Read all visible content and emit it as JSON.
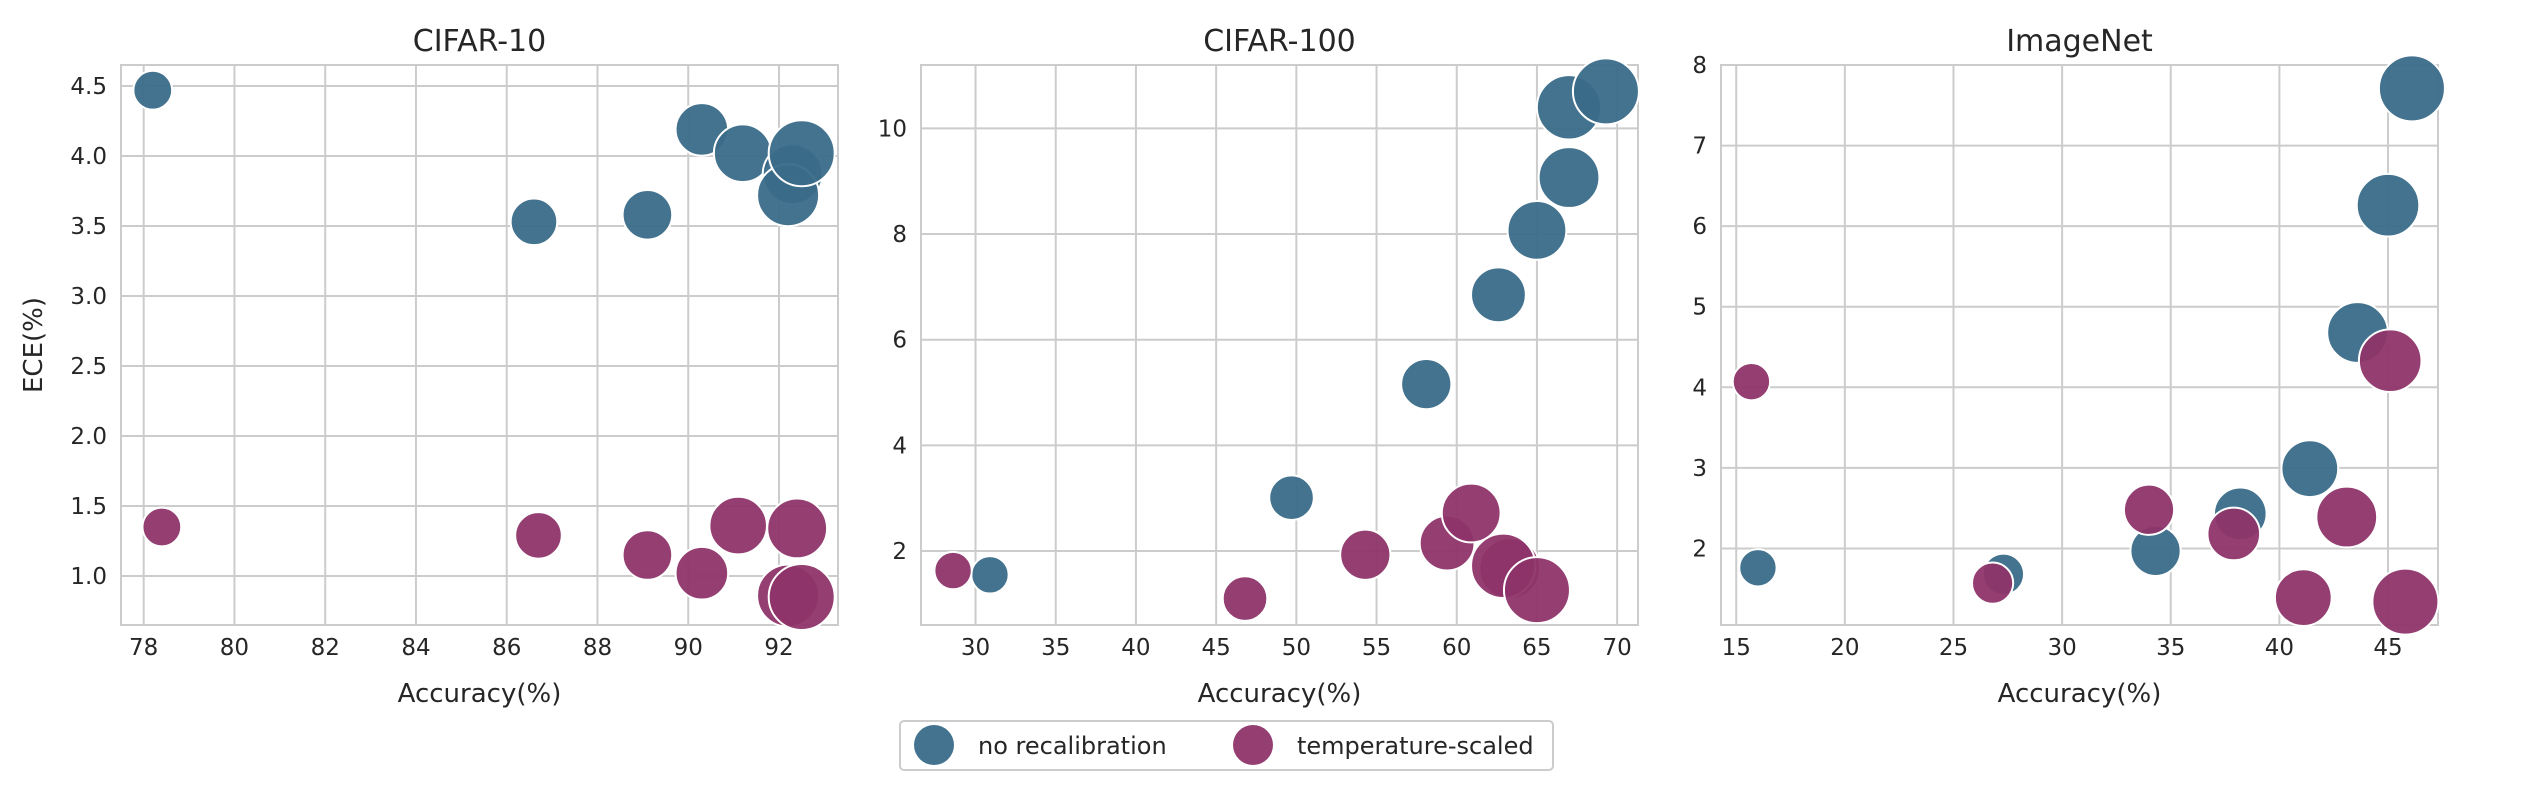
{
  "colors": {
    "no_recalibration": "#3a6b89",
    "temperature_scaled": "#8e3469",
    "grid": "#cccccc",
    "frame": "#cccccc",
    "text": "#262626",
    "background": "#ffffff"
  },
  "legend": {
    "placement": "bottom-center",
    "items": [
      {
        "label": "no recalibration",
        "series": "no_recalibration"
      },
      {
        "label": "temperature-scaled",
        "series": "temperature_scaled"
      }
    ]
  },
  "chart_data": [
    {
      "type": "scatter",
      "title": "CIFAR-10",
      "xlabel": "Accuracy(%)",
      "ylabel": "ECE(%)",
      "xlim": [
        77.5,
        93.3
      ],
      "ylim": [
        0.65,
        4.65
      ],
      "xticks": [
        78,
        80,
        82,
        84,
        86,
        88,
        90,
        92
      ],
      "yticks": [
        1.0,
        1.5,
        2.0,
        2.5,
        3.0,
        3.5,
        4.0,
        4.5
      ],
      "ytick_labels": [
        "1.0",
        "1.5",
        "2.0",
        "2.5",
        "3.0",
        "3.5",
        "4.0",
        "4.5"
      ],
      "grid": true,
      "series": [
        {
          "key": "no_recalibration",
          "name": "no recalibration",
          "points": [
            {
              "x": 78.2,
              "y": 4.47,
              "size": 1
            },
            {
              "x": 86.6,
              "y": 3.53,
              "size": 2
            },
            {
              "x": 89.1,
              "y": 3.58,
              "size": 2.5
            },
            {
              "x": 90.3,
              "y": 4.19,
              "size": 3
            },
            {
              "x": 91.2,
              "y": 4.02,
              "size": 4
            },
            {
              "x": 92.3,
              "y": 3.87,
              "size": 4.5
            },
            {
              "x": 92.2,
              "y": 3.72,
              "size": 5
            },
            {
              "x": 92.5,
              "y": 4.02,
              "size": 6
            }
          ]
        },
        {
          "key": "temperature_scaled",
          "name": "temperature-scaled",
          "points": [
            {
              "x": 78.4,
              "y": 1.35,
              "size": 1
            },
            {
              "x": 86.7,
              "y": 1.29,
              "size": 2
            },
            {
              "x": 89.1,
              "y": 1.15,
              "size": 2.5
            },
            {
              "x": 90.3,
              "y": 1.02,
              "size": 3
            },
            {
              "x": 91.1,
              "y": 1.36,
              "size": 4
            },
            {
              "x": 92.4,
              "y": 1.34,
              "size": 4.5
            },
            {
              "x": 92.2,
              "y": 0.86,
              "size": 5
            },
            {
              "x": 92.5,
              "y": 0.85,
              "size": 6
            }
          ]
        }
      ]
    },
    {
      "type": "scatter",
      "title": "CIFAR-100",
      "xlabel": "Accuracy(%)",
      "ylabel": "",
      "xlim": [
        26.6,
        71.3
      ],
      "ylim": [
        0.6,
        11.2
      ],
      "xticks": [
        30,
        35,
        40,
        45,
        50,
        55,
        60,
        65,
        70
      ],
      "yticks": [
        2,
        4,
        6,
        8,
        10
      ],
      "ytick_labels": [
        "2",
        "4",
        "6",
        "8",
        "10"
      ],
      "grid": true,
      "series": [
        {
          "key": "no_recalibration",
          "name": "no recalibration",
          "points": [
            {
              "x": 30.9,
              "y": 1.55,
              "size": 1
            },
            {
              "x": 49.7,
              "y": 3.01,
              "size": 2
            },
            {
              "x": 58.1,
              "y": 5.16,
              "size": 3
            },
            {
              "x": 62.6,
              "y": 6.85,
              "size": 4
            },
            {
              "x": 65.0,
              "y": 8.07,
              "size": 5
            },
            {
              "x": 67.0,
              "y": 9.07,
              "size": 5.5
            },
            {
              "x": 67.0,
              "y": 10.4,
              "size": 6.5
            },
            {
              "x": 69.3,
              "y": 10.7,
              "size": 7
            }
          ]
        },
        {
          "key": "temperature_scaled",
          "name": "temperature-scaled",
          "points": [
            {
              "x": 28.6,
              "y": 1.63,
              "size": 1
            },
            {
              "x": 46.8,
              "y": 1.1,
              "size": 2
            },
            {
              "x": 54.3,
              "y": 1.93,
              "size": 3
            },
            {
              "x": 59.4,
              "y": 2.15,
              "size": 4
            },
            {
              "x": 60.9,
              "y": 2.72,
              "size": 5
            },
            {
              "x": 63.3,
              "y": 1.67,
              "size": 5.5
            },
            {
              "x": 62.9,
              "y": 1.72,
              "size": 6.5
            },
            {
              "x": 65.0,
              "y": 1.26,
              "size": 7
            }
          ]
        }
      ]
    },
    {
      "type": "scatter",
      "title": "ImageNet",
      "xlabel": "Accuracy(%)",
      "ylabel": "",
      "xlim": [
        14.3,
        47.3
      ],
      "ylim": [
        1.05,
        8.0
      ],
      "xticks": [
        15,
        20,
        25,
        30,
        35,
        40,
        45
      ],
      "yticks": [
        2,
        3,
        4,
        5,
        6,
        7,
        8
      ],
      "ytick_labels": [
        "2",
        "3",
        "4",
        "5",
        "6",
        "7",
        "8"
      ],
      "grid": true,
      "series": [
        {
          "key": "no_recalibration",
          "name": "no recalibration",
          "points": [
            {
              "x": 16.0,
              "y": 1.76,
              "size": 1
            },
            {
              "x": 27.3,
              "y": 1.68,
              "size": 1.5
            },
            {
              "x": 34.3,
              "y": 1.97,
              "size": 3
            },
            {
              "x": 38.2,
              "y": 2.43,
              "size": 3.5
            },
            {
              "x": 41.4,
              "y": 2.99,
              "size": 4.5
            },
            {
              "x": 43.6,
              "y": 4.68,
              "size": 5.5
            },
            {
              "x": 45.0,
              "y": 6.26,
              "size": 6
            },
            {
              "x": 46.1,
              "y": 7.71,
              "size": 7
            }
          ]
        },
        {
          "key": "temperature_scaled",
          "name": "temperature-scaled",
          "points": [
            {
              "x": 15.7,
              "y": 4.07,
              "size": 1
            },
            {
              "x": 26.8,
              "y": 1.57,
              "size": 1.5
            },
            {
              "x": 34.0,
              "y": 2.48,
              "size": 3
            },
            {
              "x": 37.9,
              "y": 2.18,
              "size": 3.5
            },
            {
              "x": 41.1,
              "y": 1.39,
              "size": 4.5
            },
            {
              "x": 43.1,
              "y": 2.39,
              "size": 5.5
            },
            {
              "x": 45.1,
              "y": 4.33,
              "size": 6
            },
            {
              "x": 45.8,
              "y": 1.34,
              "size": 7
            }
          ]
        }
      ]
    }
  ]
}
